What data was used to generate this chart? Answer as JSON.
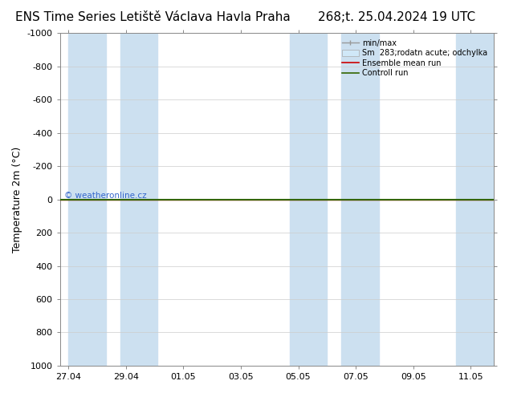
{
  "title_left": "ENS Time Series Letiště Václava Havla Praha",
  "title_right": "268;t. 25.04.2024 19 UTC",
  "ylabel": "Temperature 2m (°C)",
  "watermark": "© weatheronline.cz",
  "yticks": [
    -1000,
    -800,
    -600,
    -400,
    -200,
    0,
    200,
    400,
    600,
    800,
    1000
  ],
  "ylim_data": [
    -1000,
    1000
  ],
  "xtick_labels": [
    "27.04",
    "29.04",
    "01.05",
    "03.05",
    "05.05",
    "07.05",
    "09.05",
    "11.05"
  ],
  "xtick_positions": [
    0,
    2,
    4,
    6,
    8,
    10,
    12,
    14
  ],
  "xlim": [
    -0.3,
    14.8
  ],
  "blue_band_xranges": [
    [
      0.0,
      1.3
    ],
    [
      1.8,
      3.1
    ],
    [
      7.7,
      9.0
    ],
    [
      9.5,
      10.8
    ],
    [
      13.5,
      14.8
    ]
  ],
  "green_line_y": 0,
  "red_line_y": 0,
  "legend_labels": [
    "min/max",
    "Sm  283;rodatn acute; odchylka",
    "Ensemble mean run",
    "Controll run"
  ],
  "legend_colors": [
    "#999999",
    "#c8ddf5",
    "#cc0000",
    "#336600"
  ],
  "bg_color": "#ffffff",
  "plot_bg_color": "#ffffff",
  "blue_band_color": "#cce0f0",
  "title_fontsize": 11,
  "axis_fontsize": 9,
  "tick_fontsize": 8,
  "watermark_color": "#3366cc"
}
